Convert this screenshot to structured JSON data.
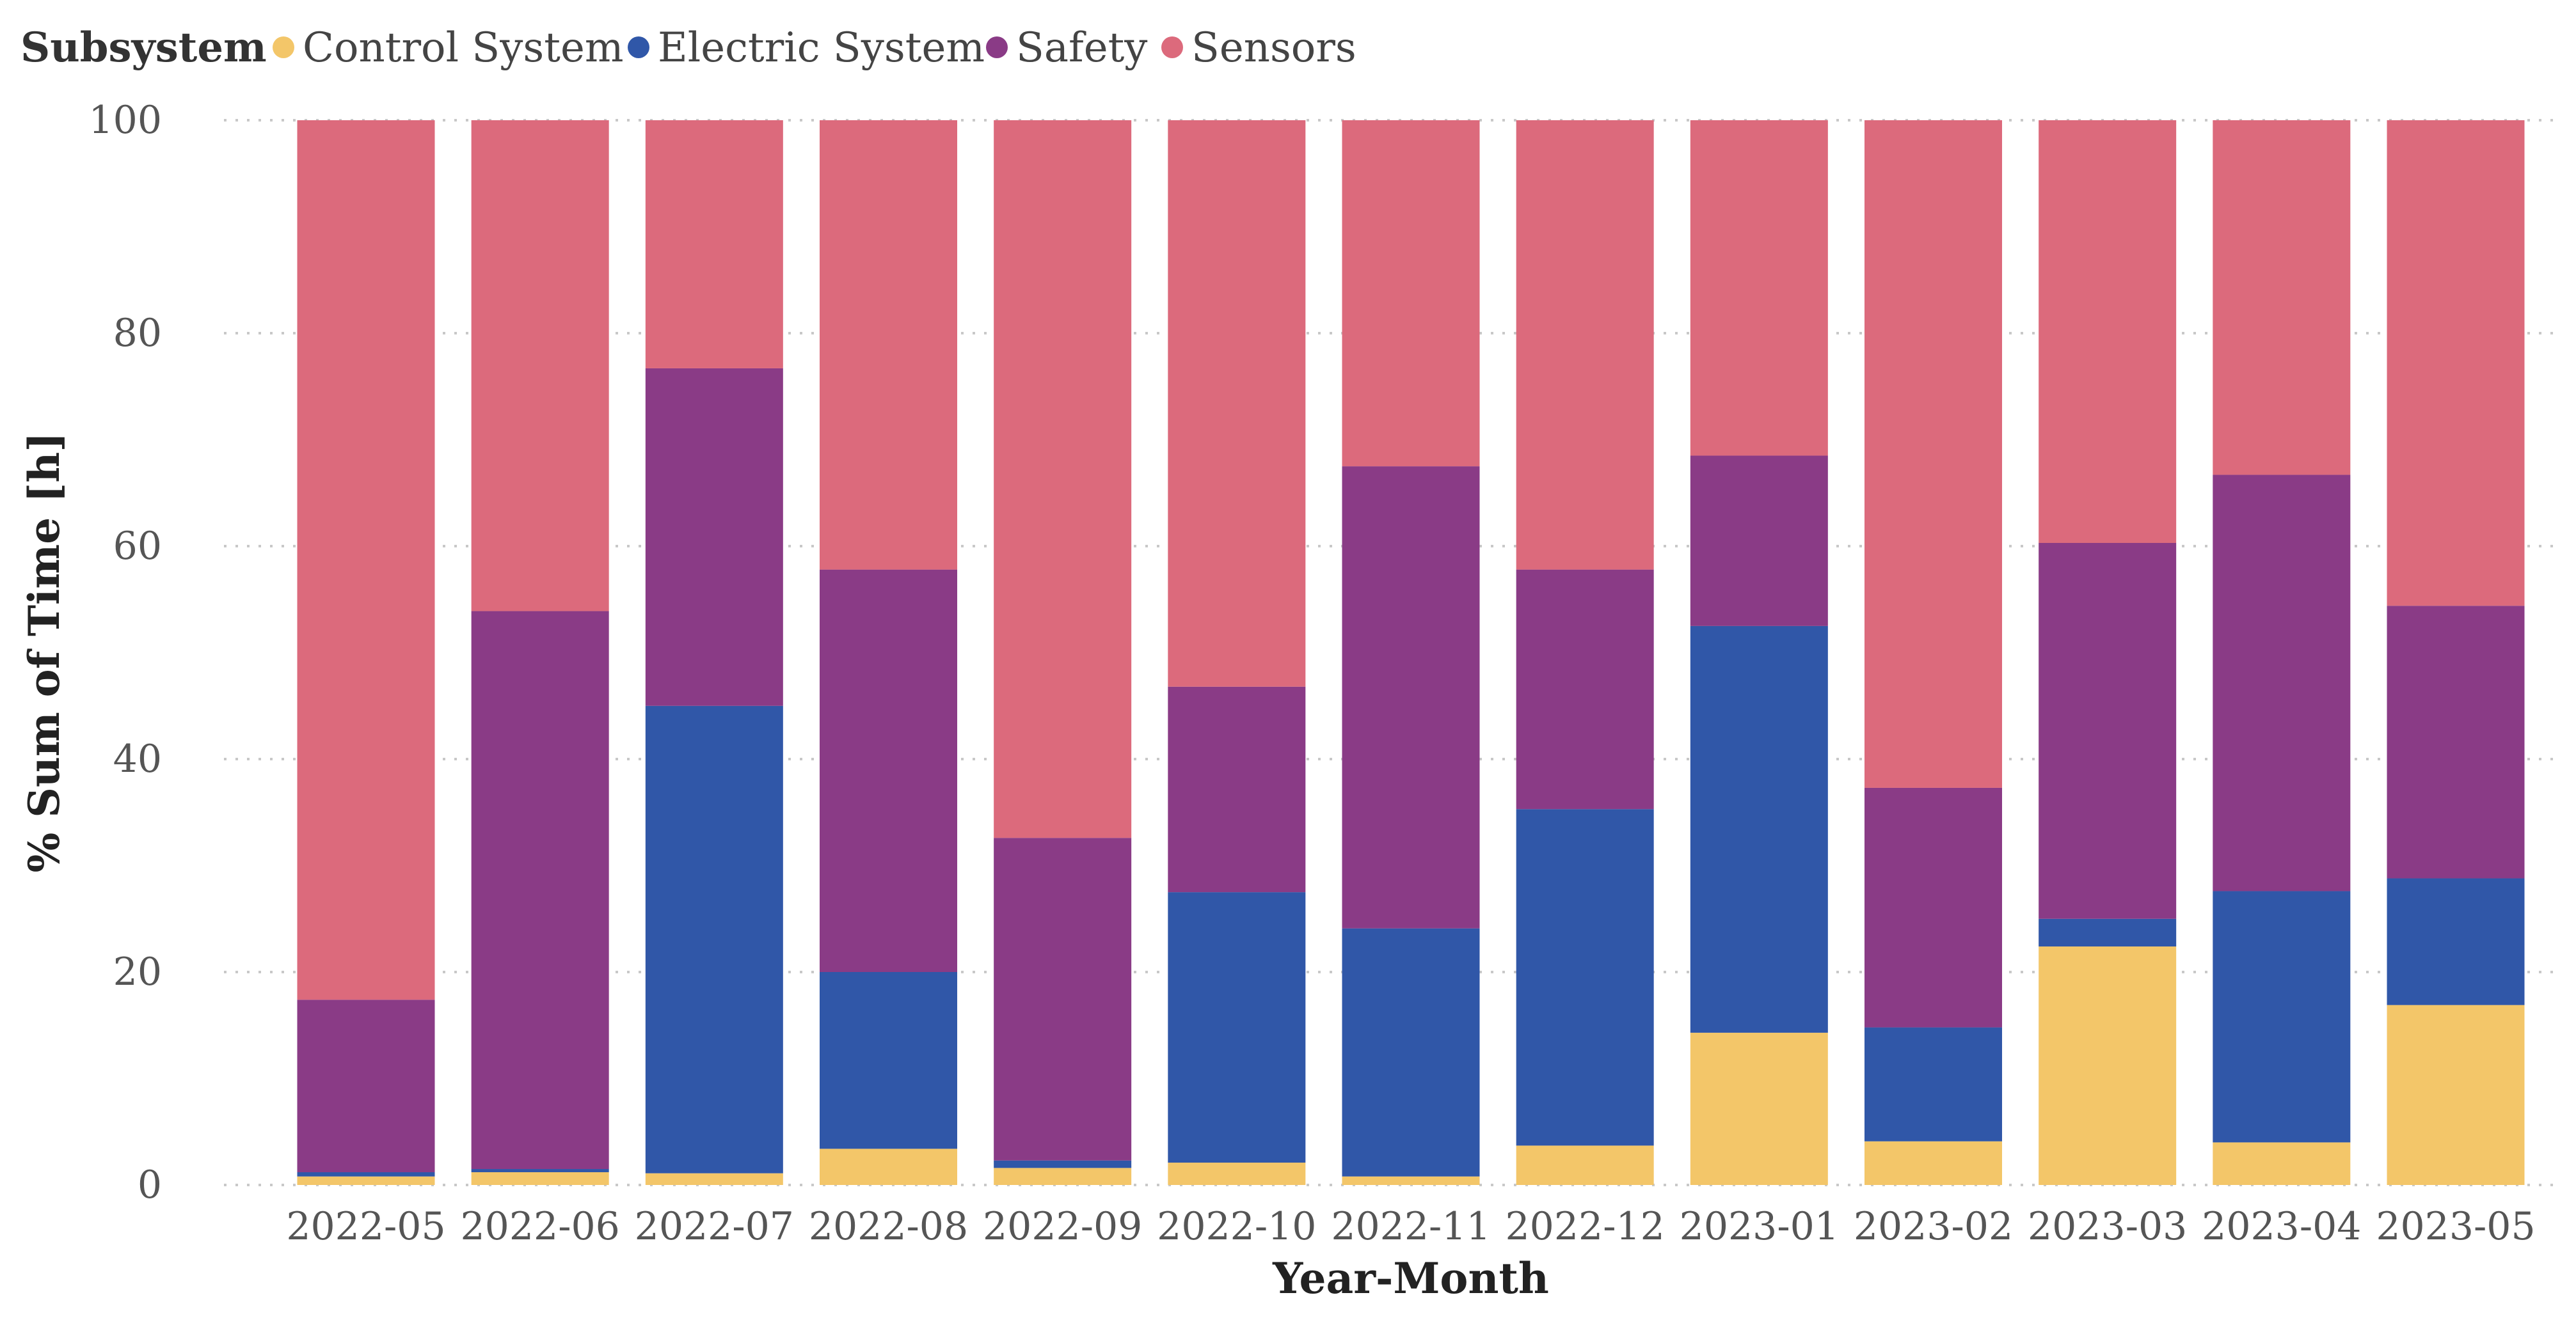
{
  "chart_data": {
    "type": "bar",
    "stacked": true,
    "legend": {
      "title": "Subsystem",
      "position": "top-left"
    },
    "categories": [
      "2022-05",
      "2022-06",
      "2022-07",
      "2022-08",
      "2022-09",
      "2022-10",
      "2022-11",
      "2022-12",
      "2023-01",
      "2023-02",
      "2023-03",
      "2023-04",
      "2023-05"
    ],
    "series": [
      {
        "name": "Control System",
        "color": "#F3C669",
        "values": [
          0.8,
          1.2,
          1.1,
          3.4,
          1.6,
          2.1,
          0.8,
          3.7,
          14.3,
          4.1,
          22.4,
          4.0,
          16.9
        ]
      },
      {
        "name": "Electric System",
        "color": "#3057A8",
        "values": [
          0.4,
          0.3,
          43.9,
          16.6,
          0.7,
          25.4,
          23.3,
          31.6,
          38.2,
          10.7,
          2.6,
          23.6,
          11.9
        ]
      },
      {
        "name": "Safety",
        "color": "#8A3B86",
        "values": [
          16.2,
          52.4,
          31.7,
          37.8,
          30.3,
          19.3,
          43.4,
          22.5,
          16.0,
          22.5,
          35.3,
          39.1,
          25.6
        ]
      },
      {
        "name": "Sensors",
        "color": "#DC6A7C",
        "values": [
          82.6,
          46.1,
          23.3,
          42.2,
          67.4,
          53.2,
          32.5,
          42.2,
          31.5,
          62.7,
          39.7,
          33.3,
          45.6
        ]
      }
    ],
    "ylim": [
      0,
      100
    ],
    "yticks": [
      "0",
      "20",
      "40",
      "60",
      "80",
      "100"
    ],
    "xlabel": "Year-Month",
    "ylabel": "% Sum of Time [h]",
    "grid": true
  }
}
